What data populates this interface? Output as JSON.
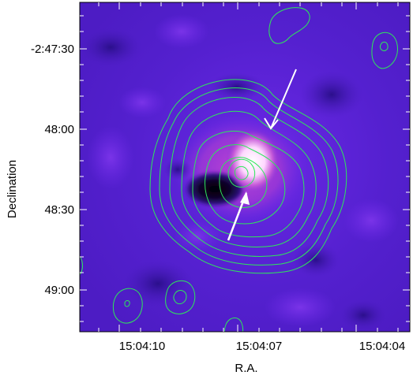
{
  "figure": {
    "type": "radio contour overlay on image",
    "x_axis": {
      "title": "R.A.",
      "ticks": [
        "15:04:10",
        "15:04:07",
        "15:04:04"
      ]
    },
    "y_axis": {
      "title": "Declination",
      "ticks": [
        "-2:47:30",
        "48:00",
        "48:30",
        "49:00"
      ]
    },
    "colors": {
      "background": "#5a1fd0",
      "contour": "#2ee85a",
      "arrow": "#ffffff",
      "bright_emission": "#ffffff",
      "dark_absorption": "#000000",
      "frame": "#000000"
    },
    "annotations": [
      {
        "name": "upper-arrow",
        "points_toward": "bright core from upper right"
      },
      {
        "name": "lower-arrow",
        "points_toward": "dark feature from lower left"
      }
    ]
  }
}
